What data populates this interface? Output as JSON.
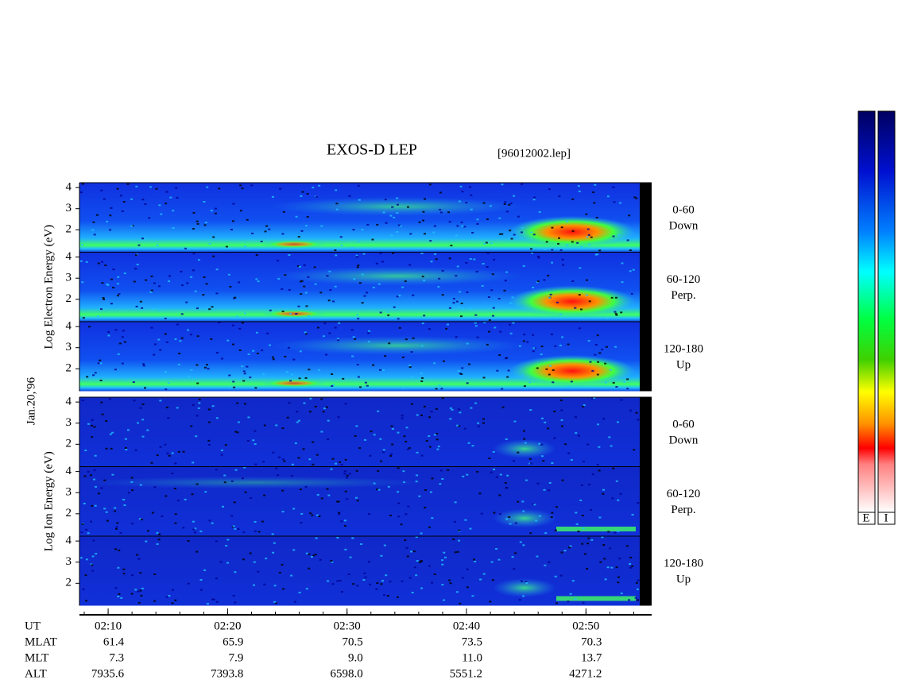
{
  "chart_data": {
    "type": "spectrogram",
    "title": "EXOS-D LEP",
    "subtitle": "[96012002.lep]",
    "date_label": "Jan.20,'96",
    "xlim": [
      7.6,
      55.5
    ],
    "xticks": [
      {
        "value": 10,
        "label": "02:10"
      },
      {
        "value": 20,
        "label": "02:20"
      },
      {
        "value": 30,
        "label": "02:30"
      },
      {
        "value": 40,
        "label": "02:40"
      },
      {
        "value": 50,
        "label": "02:50"
      }
    ],
    "groups": [
      {
        "ylabel": "Log Electron Energy (eV)",
        "panels": [
          {
            "label": [
              "0-60",
              "Down"
            ],
            "ylim": [
              0.94,
              4.23
            ],
            "yticks": [
              2,
              3,
              4
            ]
          },
          {
            "label": [
              "60-120",
              "Perp."
            ],
            "ylim": [
              0.94,
              4.23
            ],
            "yticks": [
              2,
              3,
              4
            ]
          },
          {
            "label": [
              "120-180",
              "Up"
            ],
            "ylim": [
              0.94,
              4.23
            ],
            "yticks": [
              2,
              3,
              4
            ]
          }
        ]
      },
      {
        "ylabel": "Log Ion Energy (eV)",
        "panels": [
          {
            "label": [
              "0-60",
              "Down"
            ],
            "ylim": [
              0.94,
              4.23
            ],
            "yticks": [
              2,
              3,
              4
            ]
          },
          {
            "label": [
              "60-120",
              "Perp."
            ],
            "ylim": [
              0.94,
              4.23
            ],
            "yticks": [
              2,
              3,
              4
            ]
          },
          {
            "label": [
              "120-180",
              "Up"
            ],
            "ylim": [
              0.94,
              4.23
            ],
            "yticks": [
              2,
              3,
              4
            ]
          }
        ]
      }
    ],
    "ephemeris": {
      "labels": [
        "UT",
        "MLAT",
        "MLT",
        "ALT"
      ],
      "rows": [
        [
          "61.4",
          "65.9",
          "70.5",
          "73.5",
          "70.3"
        ],
        [
          "7.3",
          "7.9",
          "9.0",
          "11.0",
          "13.7"
        ],
        [
          "7935.6",
          "7393.8",
          "6598.0",
          "5551.2",
          "4271.2"
        ]
      ]
    },
    "colorbar": {
      "labels": [
        "E",
        "I"
      ]
    }
  }
}
